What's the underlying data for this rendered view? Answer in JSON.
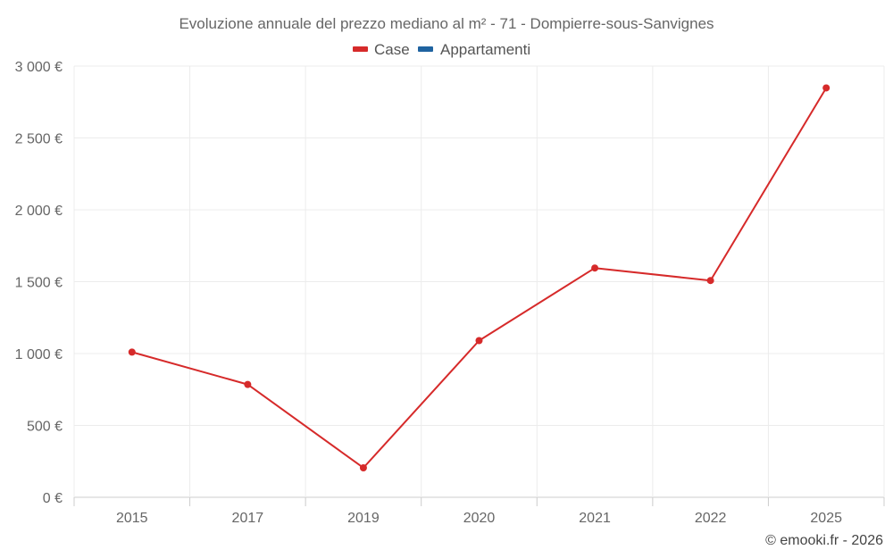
{
  "chart_data": {
    "type": "line",
    "title": "Evoluzione annuale del prezzo mediano al m² - 71 - Dompierre-sous-Sanvignes",
    "categories": [
      "2015",
      "2017",
      "2019",
      "2020",
      "2021",
      "2022",
      "2025"
    ],
    "series": [
      {
        "name": "Case",
        "color": "#d62a2a",
        "values": [
          1010,
          785,
          205,
          1090,
          1595,
          1508,
          2848
        ]
      },
      {
        "name": "Appartamenti",
        "color": "#1f63a0",
        "values": [
          null,
          null,
          null,
          null,
          null,
          null,
          null
        ]
      }
    ],
    "ylim": [
      0,
      3000
    ],
    "yticks": [
      0,
      500,
      1000,
      1500,
      2000,
      2500,
      3000
    ],
    "ytick_labels": [
      "0 €",
      "500 €",
      "1 000 €",
      "1 500 €",
      "2 000 €",
      "2 500 €",
      "3 000 €"
    ],
    "xlabel": "",
    "ylabel": "",
    "grid": true,
    "legend_position": "top-center"
  },
  "credit": "© emooki.fr - 2026"
}
